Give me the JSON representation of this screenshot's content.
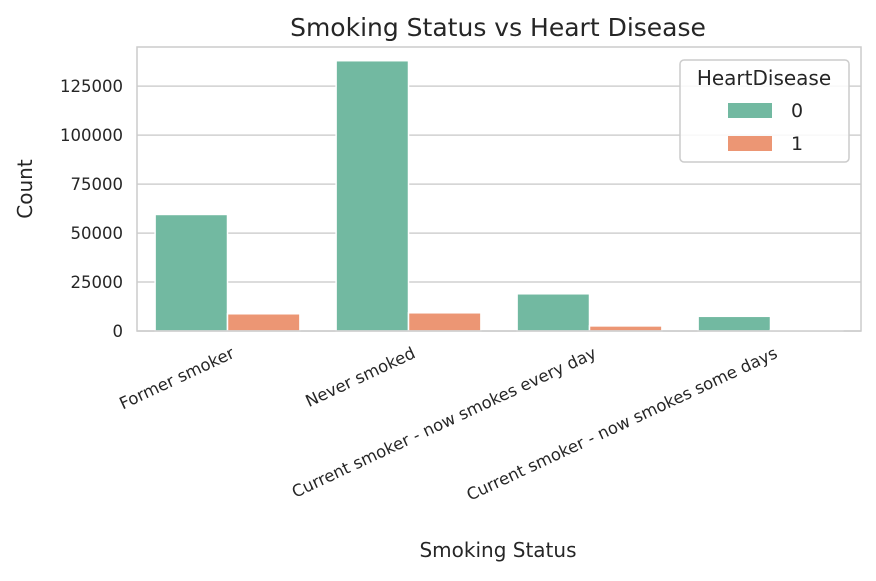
{
  "chart_data": {
    "type": "bar",
    "title": "Smoking Status vs Heart Disease",
    "xlabel": "Smoking Status",
    "ylabel": "Count",
    "categories": [
      "Former smoker",
      "Never smoked",
      "Current smoker - now smokes every day",
      "Current smoker - now smokes some days"
    ],
    "series": [
      {
        "name": "0",
        "values": [
          59500,
          138000,
          19000,
          7500
        ],
        "color": "#72b9a1"
      },
      {
        "name": "1",
        "values": [
          8800,
          9300,
          2600,
          600
        ],
        "color": "#ec9674"
      }
    ],
    "ylim": [
      0,
      145000
    ],
    "yticks": [
      "0",
      "25000",
      "50000",
      "75000",
      "100000",
      "125000"
    ],
    "ytick_values": [
      0,
      25000,
      50000,
      75000,
      100000,
      125000
    ],
    "grid": true,
    "legend": {
      "title": "HeartDisease",
      "position": "top-right"
    }
  }
}
